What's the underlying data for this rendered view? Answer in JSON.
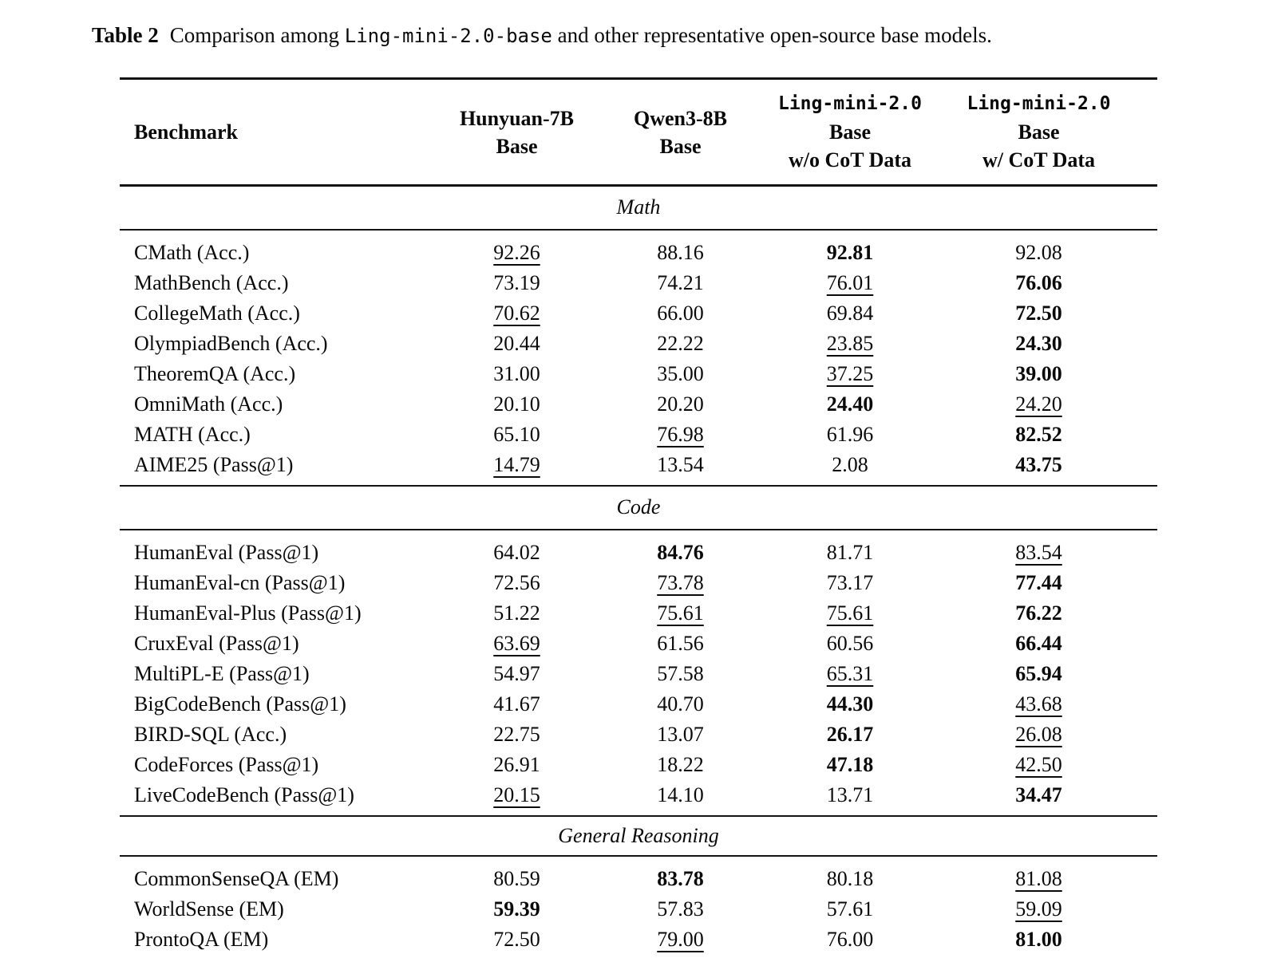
{
  "caption": {
    "label": "Table 2",
    "before_code": "Comparison among ",
    "code": "Ling-mini-2.0-base",
    "after_code": " and other representative open-source base models."
  },
  "table": {
    "columns": [
      {
        "title": "Benchmark"
      },
      {
        "line1": "Hunyuan-7B",
        "line2": "Base"
      },
      {
        "line1": "Qwen3-8B",
        "line2": "Base"
      },
      {
        "mono": "Ling-mini-2.0",
        "line1": "Base",
        "line2": "w/o CoT Data"
      },
      {
        "mono": "Ling-mini-2.0",
        "line1": "Base",
        "line2": "w/ CoT Data"
      }
    ],
    "legend": {
      "bold_means": "best",
      "underline_means": "second-best"
    },
    "sections": [
      {
        "title": "Math",
        "rows": [
          {
            "name": "CMath (Acc.)",
            "values": [
              {
                "v": "92.26",
                "s": "u"
              },
              {
                "v": "88.16",
                "s": ""
              },
              {
                "v": "92.81",
                "s": "b"
              },
              {
                "v": "92.08",
                "s": ""
              }
            ]
          },
          {
            "name": "MathBench (Acc.)",
            "values": [
              {
                "v": "73.19",
                "s": ""
              },
              {
                "v": "74.21",
                "s": ""
              },
              {
                "v": "76.01",
                "s": "u"
              },
              {
                "v": "76.06",
                "s": "b"
              }
            ]
          },
          {
            "name": "CollegeMath (Acc.)",
            "values": [
              {
                "v": "70.62",
                "s": "u"
              },
              {
                "v": "66.00",
                "s": ""
              },
              {
                "v": "69.84",
                "s": ""
              },
              {
                "v": "72.50",
                "s": "b"
              }
            ]
          },
          {
            "name": "OlympiadBench (Acc.)",
            "values": [
              {
                "v": "20.44",
                "s": ""
              },
              {
                "v": "22.22",
                "s": ""
              },
              {
                "v": "23.85",
                "s": "u"
              },
              {
                "v": "24.30",
                "s": "b"
              }
            ]
          },
          {
            "name": "TheoremQA (Acc.)",
            "values": [
              {
                "v": "31.00",
                "s": ""
              },
              {
                "v": "35.00",
                "s": ""
              },
              {
                "v": "37.25",
                "s": "u"
              },
              {
                "v": "39.00",
                "s": "b"
              }
            ]
          },
          {
            "name": "OmniMath (Acc.)",
            "values": [
              {
                "v": "20.10",
                "s": ""
              },
              {
                "v": "20.20",
                "s": ""
              },
              {
                "v": "24.40",
                "s": "b"
              },
              {
                "v": "24.20",
                "s": "u"
              }
            ]
          },
          {
            "name": "MATH (Acc.)",
            "values": [
              {
                "v": "65.10",
                "s": ""
              },
              {
                "v": "76.98",
                "s": "u"
              },
              {
                "v": "61.96",
                "s": ""
              },
              {
                "v": "82.52",
                "s": "b"
              }
            ]
          },
          {
            "name": "AIME25 (Pass@1)",
            "values": [
              {
                "v": "14.79",
                "s": "u"
              },
              {
                "v": "13.54",
                "s": ""
              },
              {
                "v": "2.08",
                "s": ""
              },
              {
                "v": "43.75",
                "s": "b"
              }
            ]
          }
        ]
      },
      {
        "title": "Code",
        "rows": [
          {
            "name": "HumanEval (Pass@1)",
            "values": [
              {
                "v": "64.02",
                "s": ""
              },
              {
                "v": "84.76",
                "s": "b"
              },
              {
                "v": "81.71",
                "s": ""
              },
              {
                "v": "83.54",
                "s": "u"
              }
            ]
          },
          {
            "name": "HumanEval-cn (Pass@1)",
            "values": [
              {
                "v": "72.56",
                "s": ""
              },
              {
                "v": "73.78",
                "s": "u"
              },
              {
                "v": "73.17",
                "s": ""
              },
              {
                "v": "77.44",
                "s": "b"
              }
            ]
          },
          {
            "name": "HumanEval-Plus (Pass@1)",
            "values": [
              {
                "v": "51.22",
                "s": ""
              },
              {
                "v": "75.61",
                "s": "u"
              },
              {
                "v": "75.61",
                "s": "u"
              },
              {
                "v": "76.22",
                "s": "b"
              }
            ]
          },
          {
            "name": "CruxEval (Pass@1)",
            "values": [
              {
                "v": "63.69",
                "s": "u"
              },
              {
                "v": "61.56",
                "s": ""
              },
              {
                "v": "60.56",
                "s": ""
              },
              {
                "v": "66.44",
                "s": "b"
              }
            ]
          },
          {
            "name": "MultiPL-E (Pass@1)",
            "values": [
              {
                "v": "54.97",
                "s": ""
              },
              {
                "v": "57.58",
                "s": ""
              },
              {
                "v": "65.31",
                "s": "u"
              },
              {
                "v": "65.94",
                "s": "b"
              }
            ]
          },
          {
            "name": "BigCodeBench (Pass@1)",
            "values": [
              {
                "v": "41.67",
                "s": ""
              },
              {
                "v": "40.70",
                "s": ""
              },
              {
                "v": "44.30",
                "s": "b"
              },
              {
                "v": "43.68",
                "s": "u"
              }
            ]
          },
          {
            "name": "BIRD-SQL (Acc.)",
            "values": [
              {
                "v": "22.75",
                "s": ""
              },
              {
                "v": "13.07",
                "s": ""
              },
              {
                "v": "26.17",
                "s": "b"
              },
              {
                "v": "26.08",
                "s": "u"
              }
            ]
          },
          {
            "name": "CodeForces (Pass@1)",
            "values": [
              {
                "v": "26.91",
                "s": ""
              },
              {
                "v": "18.22",
                "s": ""
              },
              {
                "v": "47.18",
                "s": "b"
              },
              {
                "v": "42.50",
                "s": "u"
              }
            ]
          },
          {
            "name": "LiveCodeBench (Pass@1)",
            "values": [
              {
                "v": "20.15",
                "s": "u"
              },
              {
                "v": "14.10",
                "s": ""
              },
              {
                "v": "13.71",
                "s": ""
              },
              {
                "v": "34.47",
                "s": "b"
              }
            ]
          }
        ]
      },
      {
        "title": "General Reasoning",
        "rows": [
          {
            "name": "CommonSenseQA (EM)",
            "values": [
              {
                "v": "80.59",
                "s": ""
              },
              {
                "v": "83.78",
                "s": "b"
              },
              {
                "v": "80.18",
                "s": ""
              },
              {
                "v": "81.08",
                "s": "u"
              }
            ]
          },
          {
            "name": "WorldSense (EM)",
            "values": [
              {
                "v": "59.39",
                "s": "b"
              },
              {
                "v": "57.83",
                "s": ""
              },
              {
                "v": "57.61",
                "s": ""
              },
              {
                "v": "59.09",
                "s": "u"
              }
            ]
          },
          {
            "name": "ProntoQA (EM)",
            "values": [
              {
                "v": "72.50",
                "s": ""
              },
              {
                "v": "79.00",
                "s": "u"
              },
              {
                "v": "76.00",
                "s": ""
              },
              {
                "v": "81.00",
                "s": "b"
              }
            ]
          }
        ]
      }
    ]
  }
}
